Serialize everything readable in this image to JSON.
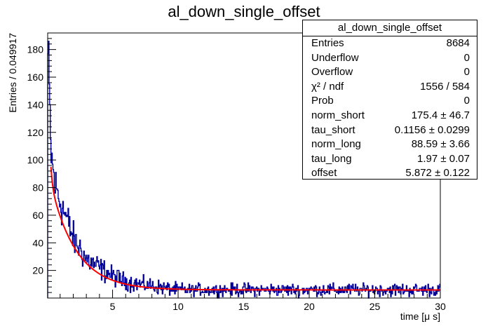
{
  "title": "al_down_single_offset",
  "stats_box": {
    "title": "al_down_single_offset",
    "rows": [
      {
        "label": "Entries",
        "value": "8684"
      },
      {
        "label": "Underflow",
        "value": "0"
      },
      {
        "label": "Overflow",
        "value": "0"
      },
      {
        "label": "χ² / ndf",
        "value": "1556 / 584"
      },
      {
        "label": "Prob",
        "value": "0"
      },
      {
        "label": "norm_short",
        "value": "175.4 ± 46.7"
      },
      {
        "label": "tau_short",
        "value": "0.1156 ± 0.0299"
      },
      {
        "label": "norm_long",
        "value": "88.59 ± 3.66"
      },
      {
        "label": "tau_long",
        "value": "1.97 ± 0.07"
      },
      {
        "label": "offset",
        "value": "5.872 ± 0.122"
      }
    ]
  },
  "chart_data": {
    "type": "histogram",
    "title": "al_down_single_offset",
    "xlabel": "time [μ s]",
    "ylabel": "Entries / 0.049917",
    "xlim": [
      0.05,
      30
    ],
    "ylim": [
      0,
      192
    ],
    "bin_width": 0.049917,
    "x_ticks": [
      5,
      10,
      15,
      20,
      25,
      30
    ],
    "y_ticks": [
      20,
      40,
      60,
      80,
      100,
      120,
      140,
      160,
      180
    ],
    "grid": false,
    "histogram_color": "#000099",
    "fit_color": "#ff0000",
    "fit": {
      "function": "norm_short*exp(-t/tau_short) + norm_long*exp(-t/tau_long) + offset",
      "norm_short": 175.4,
      "tau_short": 0.1156,
      "norm_long": 88.59,
      "tau_long": 1.97,
      "offset": 5.872
    },
    "series_envelope": [
      {
        "x": 0.1,
        "y": 175
      },
      {
        "x": 0.3,
        "y": 105
      },
      {
        "x": 0.6,
        "y": 82
      },
      {
        "x": 1.0,
        "y": 70
      },
      {
        "x": 1.5,
        "y": 58
      },
      {
        "x": 2.0,
        "y": 43
      },
      {
        "x": 2.5,
        "y": 36
      },
      {
        "x": 3.0,
        "y": 28
      },
      {
        "x": 4.0,
        "y": 22
      },
      {
        "x": 5.0,
        "y": 16
      },
      {
        "x": 6.0,
        "y": 12
      },
      {
        "x": 7.0,
        "y": 10
      },
      {
        "x": 10.0,
        "y": 6
      },
      {
        "x": 15.0,
        "y": 6
      },
      {
        "x": 20.0,
        "y": 6
      },
      {
        "x": 25.0,
        "y": 6
      },
      {
        "x": 30.0,
        "y": 6
      }
    ]
  }
}
